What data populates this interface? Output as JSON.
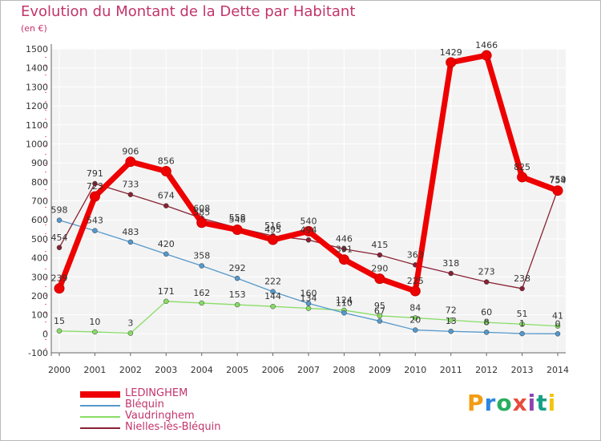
{
  "header": {
    "title": "Evolution du Montant de la Dette par Habitant",
    "subtitle": "(en €)"
  },
  "logo": {
    "text": "Proxiti",
    "colors": [
      "#f39c12",
      "#2e86de",
      "#27ae60",
      "#e74c3c",
      "#8e44ad",
      "#16a085",
      "#f1c40f"
    ]
  },
  "chart_data": {
    "type": "line",
    "title": "Evolution du Montant de la Dette par Habitant",
    "subtitle": "(en €)",
    "x": [
      "2000",
      "2001",
      "2002",
      "2003",
      "2004",
      "2005",
      "2006",
      "2007",
      "2008",
      "2009",
      "2010",
      "2011",
      "2012",
      "2013",
      "2014"
    ],
    "yticks": [
      "-100",
      "0",
      "100",
      "200",
      "300",
      "400",
      "500",
      "600",
      "700",
      "800",
      "900",
      "1000",
      "1100",
      "1200",
      "1300",
      "1400",
      "1500"
    ],
    "ylim": [
      -100,
      1500
    ],
    "grid": true,
    "legend_position": "bottom-left",
    "series": [
      {
        "name": "LEDINGHEM",
        "color": "#ee0000",
        "values": [
          239,
          723,
          906,
          856,
          585,
          548,
          495,
          540,
          391,
          290,
          225,
          1429,
          1466,
          825,
          754
        ]
      },
      {
        "name": "Bléquin",
        "color": "#5599cc",
        "values": [
          598,
          543,
          483,
          420,
          358,
          292,
          222,
          160,
          110,
          67,
          20,
          13,
          8,
          1,
          0
        ]
      },
      {
        "name": "Vaudringhem",
        "color": "#88dd66",
        "values": [
          15,
          10,
          3,
          171,
          162,
          153,
          144,
          134,
          124,
          95,
          84,
          72,
          60,
          51,
          41
        ]
      },
      {
        "name": "Nielles-lès-Bléquin",
        "color": "#882233",
        "values": [
          454,
          791,
          733,
          674,
          608,
          558,
          516,
          494,
          446,
          415,
          363,
          318,
          273,
          238,
          759
        ]
      }
    ]
  }
}
